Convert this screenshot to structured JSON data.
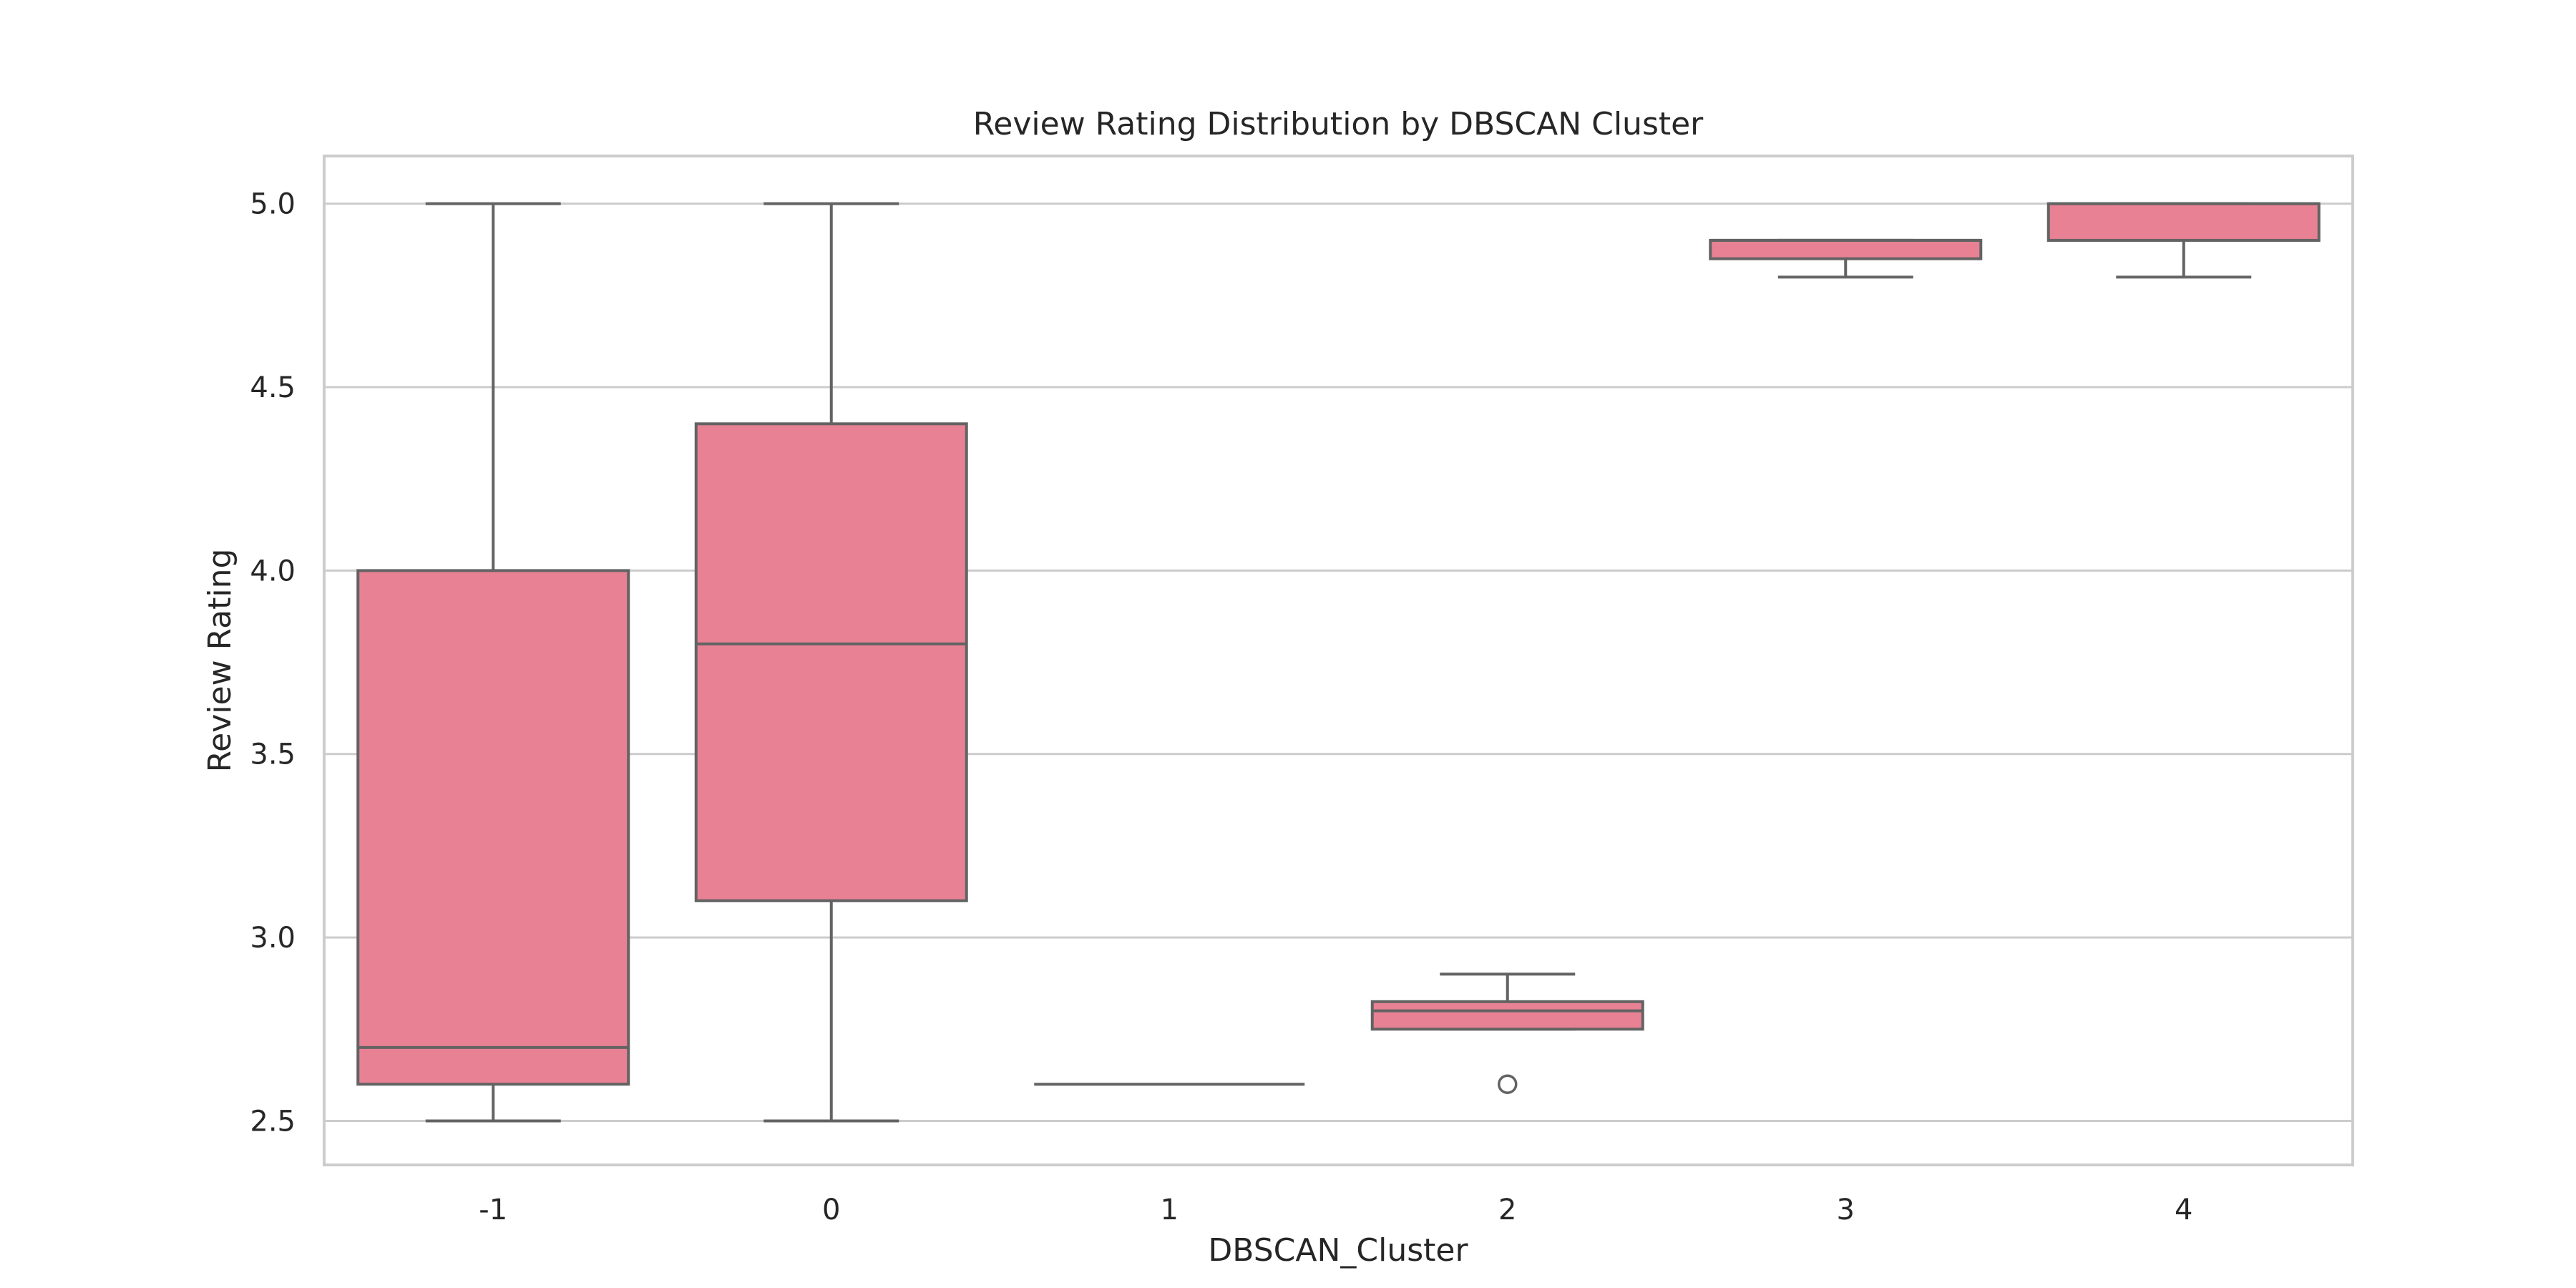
{
  "chart_data": {
    "type": "box",
    "title": "Review Rating Distribution by DBSCAN Cluster",
    "xlabel": "DBSCAN_Cluster",
    "ylabel": "Review Rating",
    "categories": [
      "-1",
      "0",
      "1",
      "2",
      "3",
      "4"
    ],
    "ylim": [
      2.38,
      5.13
    ],
    "yticks": [
      2.5,
      3.0,
      3.5,
      4.0,
      4.5,
      5.0
    ],
    "ytick_labels": [
      "2.5",
      "3.0",
      "3.5",
      "4.0",
      "4.5",
      "5.0"
    ],
    "grid": true,
    "box_color": "#e88194",
    "line_color": "#636363",
    "grid_color": "#cccccc",
    "boxes": [
      {
        "category": "-1",
        "whisker_low": 2.5,
        "q1": 2.6,
        "median": 2.7,
        "q3": 4.0,
        "whisker_high": 5.0,
        "outliers": []
      },
      {
        "category": "0",
        "whisker_low": 2.5,
        "q1": 3.1,
        "median": 3.8,
        "q3": 4.4,
        "whisker_high": 5.0,
        "outliers": []
      },
      {
        "category": "1",
        "whisker_low": 2.6,
        "q1": 2.6,
        "median": 2.6,
        "q3": 2.6,
        "whisker_high": 2.6,
        "outliers": []
      },
      {
        "category": "2",
        "whisker_low": 2.75,
        "q1": 2.75,
        "median": 2.8,
        "q3": 2.825,
        "whisker_high": 2.9,
        "outliers": [
          2.6
        ]
      },
      {
        "category": "3",
        "whisker_low": 4.8,
        "q1": 4.85,
        "median": 4.9,
        "q3": 4.9,
        "whisker_high": 4.9,
        "outliers": []
      },
      {
        "category": "4",
        "whisker_low": 4.8,
        "q1": 4.9,
        "median": 5.0,
        "q3": 5.0,
        "whisker_high": 5.0,
        "outliers": []
      }
    ]
  }
}
